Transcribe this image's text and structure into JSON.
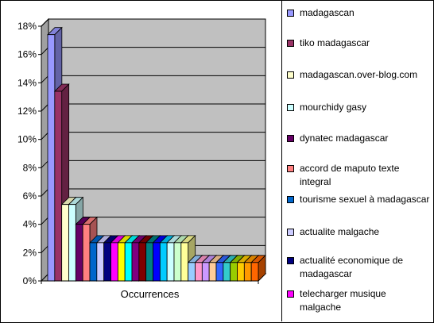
{
  "chart_data": {
    "type": "bar",
    "style": "3d-clustered-column",
    "categories": [
      "Occurrences"
    ],
    "ylim": [
      0,
      0.18
    ],
    "yticks": [
      "0%",
      "2%",
      "4%",
      "6%",
      "8%",
      "10%",
      "12%",
      "14%",
      "16%",
      "18%"
    ],
    "grid": true,
    "legend_position": "right",
    "series": [
      {
        "name": "madagascan",
        "value": 0.174,
        "color": "#9999ff"
      },
      {
        "name": "tiko madagascar",
        "value": 0.134,
        "color": "#993366"
      },
      {
        "name": "madagascan.over-blog.com",
        "value": 0.054,
        "color": "#ffffcc"
      },
      {
        "name": "mourchidy gasy",
        "value": 0.054,
        "color": "#ccffff"
      },
      {
        "name": "dynatec madagascar",
        "value": 0.04,
        "color": "#660066"
      },
      {
        "name": "accord de maputo texte integral",
        "value": 0.04,
        "color": "#ff8080"
      },
      {
        "name": "tourisme sexuel à madagascar",
        "value": 0.027,
        "color": "#0066cc"
      },
      {
        "name": "actualite malgache",
        "value": 0.027,
        "color": "#ccccff"
      },
      {
        "name": "actualité economique de madagascar",
        "value": 0.027,
        "color": "#000080"
      },
      {
        "name": "telecharger musique malgache",
        "value": 0.027,
        "color": "#ff00ff"
      },
      {
        "name": "",
        "value": 0.027,
        "color": "#ffff00"
      },
      {
        "name": "",
        "value": 0.027,
        "color": "#00ffff"
      },
      {
        "name": "",
        "value": 0.027,
        "color": "#800080"
      },
      {
        "name": "",
        "value": 0.027,
        "color": "#800000"
      },
      {
        "name": "",
        "value": 0.027,
        "color": "#008080"
      },
      {
        "name": "",
        "value": 0.027,
        "color": "#0000ff"
      },
      {
        "name": "",
        "value": 0.027,
        "color": "#00ccff"
      },
      {
        "name": "",
        "value": 0.027,
        "color": "#ccffff"
      },
      {
        "name": "",
        "value": 0.027,
        "color": "#ccffcc"
      },
      {
        "name": "",
        "value": 0.027,
        "color": "#ffff99"
      },
      {
        "name": "",
        "value": 0.013,
        "color": "#99ccff"
      },
      {
        "name": "",
        "value": 0.013,
        "color": "#ff99cc"
      },
      {
        "name": "",
        "value": 0.013,
        "color": "#cc99ff"
      },
      {
        "name": "",
        "value": 0.013,
        "color": "#ffcc99"
      },
      {
        "name": "",
        "value": 0.013,
        "color": "#3366ff"
      },
      {
        "name": "",
        "value": 0.013,
        "color": "#33cccc"
      },
      {
        "name": "",
        "value": 0.013,
        "color": "#99cc00"
      },
      {
        "name": "",
        "value": 0.013,
        "color": "#ffcc00"
      },
      {
        "name": "",
        "value": 0.013,
        "color": "#ff9900"
      },
      {
        "name": "",
        "value": 0.013,
        "color": "#ff6600"
      }
    ]
  }
}
